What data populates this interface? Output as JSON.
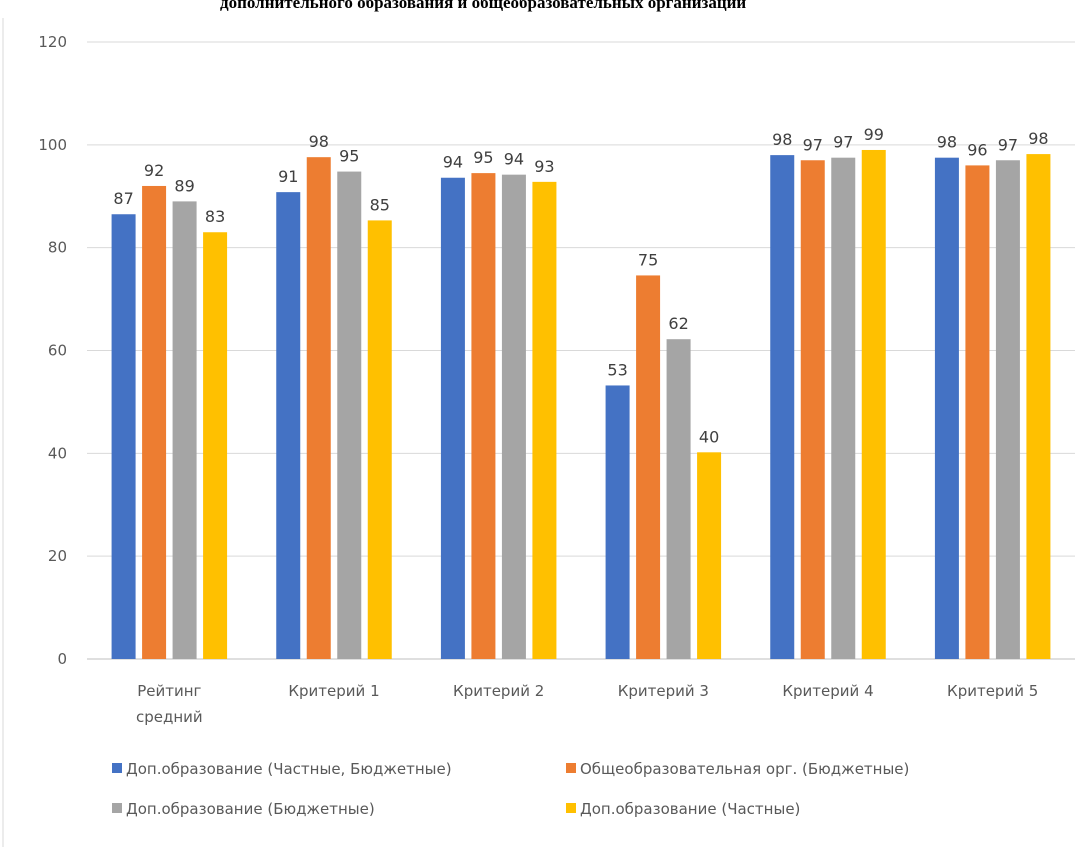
{
  "chart_data": {
    "type": "bar",
    "title": "дополнительного образования и общеобразовательных организаций",
    "categories": [
      [
        "Рейтинг",
        "средний"
      ],
      [
        "Критерий 1"
      ],
      [
        "Критерий 2"
      ],
      [
        "Критерий 3"
      ],
      [
        "Критерий 4"
      ],
      [
        "Критерий 5"
      ]
    ],
    "ylim": [
      0,
      120
    ],
    "yticks": [
      0,
      20,
      40,
      60,
      80,
      100,
      120
    ],
    "grid": true,
    "legend": "bottom",
    "series": [
      {
        "name": "Доп.образование (Частные, Бюджетные)",
        "color": "#4472C4",
        "values": [
          86.5,
          90.8,
          93.6,
          53.2,
          98,
          97.5
        ],
        "labels": [
          "87",
          "91",
          "94",
          "53",
          "98",
          "98"
        ]
      },
      {
        "name": "Общеобразовательная орг. (Бюджетные)",
        "color": "#ED7D31",
        "values": [
          92,
          97.6,
          94.5,
          74.6,
          97,
          96
        ],
        "labels": [
          "92",
          "98",
          "95",
          "75",
          "97",
          "96"
        ]
      },
      {
        "name": "Доп.образование (Бюджетные)",
        "color": "#A5A5A5",
        "values": [
          89,
          94.8,
          94.2,
          62.2,
          97.5,
          97
        ],
        "labels": [
          "89",
          "95",
          "94",
          "62",
          "97",
          "97"
        ]
      },
      {
        "name": "Доп.образование (Частные)",
        "color": "#FFC000",
        "values": [
          83,
          85.3,
          92.8,
          40.2,
          99,
          98.2
        ],
        "labels": [
          "83",
          "85",
          "93",
          "40",
          "99",
          "98"
        ]
      }
    ]
  }
}
